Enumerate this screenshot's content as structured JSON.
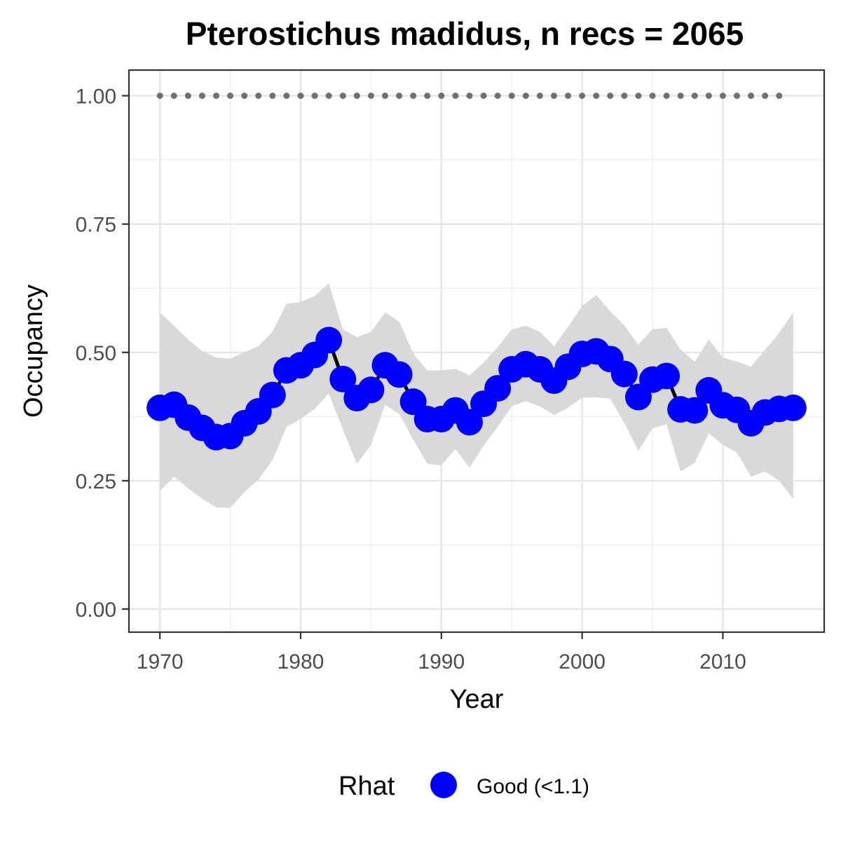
{
  "chart_data": {
    "type": "line",
    "title": "Pterostichus madidus, n recs = 2065",
    "xlabel": "Year",
    "ylabel": "Occupancy",
    "xlim": [
      1967.8,
      2017.2
    ],
    "ylim": [
      -0.045,
      1.05
    ],
    "x_ticks": [
      1970,
      1980,
      1990,
      2000,
      2010
    ],
    "x_tick_labels": [
      "1970",
      "1980",
      "1990",
      "2000",
      "2010"
    ],
    "y_ticks": [
      0,
      0.25,
      0.5,
      0.75,
      1.0
    ],
    "y_tick_labels": [
      "0.00",
      "0.25",
      "0.50",
      "0.75",
      "1.00"
    ],
    "grid": true,
    "legend": {
      "position": "bottom",
      "title": "Rhat",
      "entries": [
        {
          "label": "Good (<1.1)",
          "color": "#0000ff"
        }
      ]
    },
    "colors": {
      "points": "#0000ff",
      "line": "#000000",
      "ribbon": "#d9d9d9",
      "reference": "#707070"
    },
    "x": [
      1970,
      1971,
      1972,
      1973,
      1974,
      1975,
      1976,
      1977,
      1978,
      1979,
      1980,
      1981,
      1982,
      1983,
      1984,
      1985,
      1986,
      1987,
      1988,
      1989,
      1990,
      1991,
      1992,
      1993,
      1994,
      1995,
      1996,
      1997,
      1998,
      1999,
      2000,
      2001,
      2002,
      2003,
      2004,
      2005,
      2006,
      2007,
      2008,
      2009,
      2010,
      2011,
      2012,
      2013,
      2014,
      2015
    ],
    "series": [
      {
        "values": [
          0.392,
          0.398,
          0.373,
          0.353,
          0.335,
          0.337,
          0.362,
          0.385,
          0.417,
          0.465,
          0.475,
          0.495,
          0.524,
          0.448,
          0.411,
          0.427,
          0.475,
          0.457,
          0.404,
          0.37,
          0.37,
          0.387,
          0.364,
          0.4,
          0.43,
          0.467,
          0.477,
          0.467,
          0.445,
          0.472,
          0.497,
          0.502,
          0.487,
          0.458,
          0.413,
          0.447,
          0.454,
          0.389,
          0.387,
          0.426,
          0.397,
          0.388,
          0.362,
          0.383,
          0.39,
          0.392
        ],
        "lower": [
          0.23,
          0.258,
          0.235,
          0.215,
          0.198,
          0.197,
          0.228,
          0.252,
          0.29,
          0.355,
          0.37,
          0.39,
          0.42,
          0.35,
          0.283,
          0.32,
          0.398,
          0.38,
          0.33,
          0.283,
          0.28,
          0.312,
          0.275,
          0.318,
          0.355,
          0.395,
          0.405,
          0.395,
          0.378,
          0.392,
          0.412,
          0.412,
          0.41,
          0.362,
          0.308,
          0.352,
          0.36,
          0.268,
          0.285,
          0.342,
          0.32,
          0.305,
          0.258,
          0.268,
          0.25,
          0.215
        ],
        "upper": [
          0.578,
          0.552,
          0.525,
          0.503,
          0.49,
          0.488,
          0.5,
          0.512,
          0.54,
          0.595,
          0.598,
          0.61,
          0.635,
          0.545,
          0.53,
          0.54,
          0.578,
          0.56,
          0.498,
          0.465,
          0.465,
          0.468,
          0.455,
          0.48,
          0.51,
          0.545,
          0.552,
          0.54,
          0.512,
          0.55,
          0.59,
          0.612,
          0.58,
          0.552,
          0.515,
          0.545,
          0.548,
          0.505,
          0.482,
          0.525,
          0.49,
          0.482,
          0.472,
          0.505,
          0.538,
          0.578
        ]
      }
    ],
    "reference_line": {
      "value": 1.0,
      "x_start": 1970,
      "x_end": 2014
    }
  }
}
